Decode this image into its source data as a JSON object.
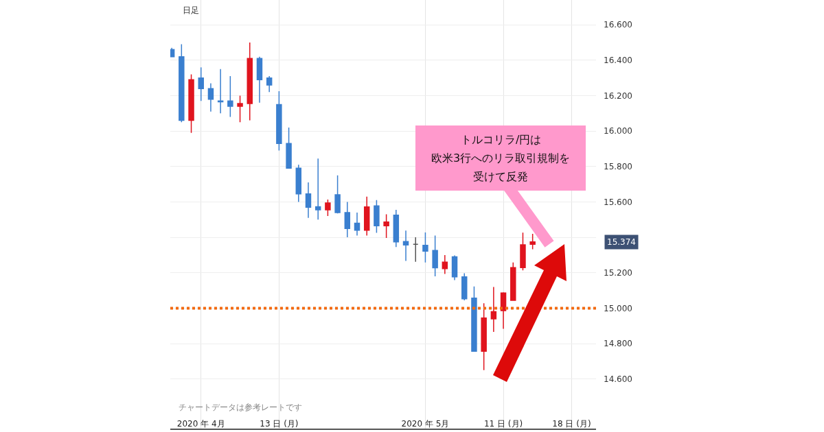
{
  "chart_data": {
    "type": "candlestick",
    "categories": [
      null,
      null,
      null,
      "2020 年 4月",
      null,
      null,
      null,
      null,
      null,
      null,
      null,
      "13 日 (月)",
      null,
      null,
      null,
      null,
      null,
      null,
      null,
      null,
      null,
      null,
      null,
      null,
      null,
      null,
      "2020 年 5月",
      null,
      null,
      null,
      null,
      null,
      null,
      null,
      "11 日 (月)",
      null,
      null,
      null,
      null,
      null,
      null,
      "18 日 (月)",
      null,
      null
    ],
    "ohlc": [
      [
        16.46,
        16.47,
        16.42,
        16.42
      ],
      [
        16.42,
        16.49,
        16.05,
        16.06
      ],
      [
        16.06,
        16.32,
        15.99,
        16.29
      ],
      [
        16.3,
        16.36,
        16.17,
        16.24
      ],
      [
        16.24,
        16.27,
        16.11,
        16.18
      ],
      [
        16.17,
        16.35,
        16.1,
        16.165
      ],
      [
        16.17,
        16.31,
        16.08,
        16.14
      ],
      [
        16.14,
        16.2,
        16.05,
        16.155
      ],
      [
        16.155,
        16.5,
        16.06,
        16.41
      ],
      [
        16.41,
        16.42,
        16.16,
        16.29
      ],
      [
        16.3,
        16.31,
        16.22,
        16.26
      ],
      [
        16.15,
        16.225,
        15.89,
        15.93
      ],
      [
        15.93,
        16.02,
        15.79,
        15.79
      ],
      [
        15.79,
        15.81,
        15.6,
        15.645
      ],
      [
        15.645,
        15.71,
        15.51,
        15.57
      ],
      [
        15.573,
        15.845,
        15.5,
        15.555
      ],
      [
        15.555,
        15.613,
        15.52,
        15.594
      ],
      [
        15.64,
        15.75,
        15.535,
        15.54
      ],
      [
        15.54,
        15.6,
        15.4,
        15.45
      ],
      [
        15.48,
        15.54,
        15.41,
        15.44
      ],
      [
        15.44,
        15.63,
        15.41,
        15.572
      ],
      [
        15.577,
        15.61,
        15.425,
        15.465
      ],
      [
        15.465,
        15.53,
        15.396,
        15.486
      ],
      [
        15.525,
        15.555,
        15.345,
        15.374
      ],
      [
        15.376,
        15.438,
        15.267,
        15.357
      ],
      [
        15.361,
        15.4,
        15.262,
        15.361
      ],
      [
        15.355,
        15.427,
        15.258,
        15.322
      ],
      [
        15.326,
        15.41,
        15.18,
        15.228
      ],
      [
        15.223,
        15.3,
        15.193,
        15.26
      ],
      [
        15.29,
        15.298,
        15.158,
        15.177
      ],
      [
        15.177,
        15.197,
        15.044,
        15.053
      ],
      [
        15.057,
        15.122,
        14.755,
        14.757
      ],
      [
        14.757,
        15.028,
        14.65,
        14.944
      ],
      [
        14.94,
        15.12,
        14.866,
        14.98
      ],
      [
        14.986,
        15.09,
        14.883,
        15.086
      ],
      [
        15.044,
        15.258,
        15.044,
        15.229
      ],
      [
        15.229,
        15.426,
        15.213,
        15.358
      ],
      [
        15.361,
        15.42,
        15.333,
        15.374
      ],
      null,
      null,
      null,
      null,
      null,
      null
    ],
    "colors": [
      "#3a7fcf",
      "#3a7fcf",
      "#e0141e",
      "#3a7fcf",
      "#3a7fcf",
      "#3a7fcf",
      "#3a7fcf",
      "#e0141e",
      "#e0141e",
      "#3a7fcf",
      "#3a7fcf",
      "#3a7fcf",
      "#3a7fcf",
      "#3a7fcf",
      "#3a7fcf",
      "#3a7fcf",
      "#e0141e",
      "#3a7fcf",
      "#3a7fcf",
      "#3a7fcf",
      "#e0141e",
      "#3a7fcf",
      "#e0141e",
      "#3a7fcf",
      "#3a7fcf",
      "#555555",
      "#3a7fcf",
      "#3a7fcf",
      "#e0141e",
      "#3a7fcf",
      "#3a7fcf",
      "#3a7fcf",
      "#e0141e",
      "#e0141e",
      "#e0141e",
      "#e0141e",
      "#e0141e",
      "#e0141e",
      null,
      null,
      null,
      null,
      null,
      null
    ],
    "ylim": [
      14.32,
      16.74
    ],
    "yticks": [
      {
        "value": 14.6,
        "label": "14.600"
      },
      {
        "value": 14.8,
        "label": "14.800"
      },
      {
        "value": 15.0,
        "label": "15.000"
      },
      {
        "value": 15.2,
        "label": "15.200"
      },
      {
        "value": 15.4,
        "label": null
      },
      {
        "value": 15.6,
        "label": "15.600"
      },
      {
        "value": 15.8,
        "label": "15.800"
      },
      {
        "value": 16.0,
        "label": "16.000"
      },
      {
        "value": 16.2,
        "label": "16.200"
      },
      {
        "value": 16.4,
        "label": "16.400"
      },
      {
        "value": 16.6,
        "label": "16.600"
      }
    ],
    "grid": true,
    "ref_lines": [
      {
        "axis": "y",
        "value": 15.0,
        "color": "#f26a10",
        "line_style": "dotted"
      }
    ],
    "annotations": [
      "日足",
      "チャートデータは参考レートです",
      "15.374",
      "トルコリラ/円は",
      "欧米3行へのリラ取引規制を",
      "受けて反発"
    ]
  }
}
